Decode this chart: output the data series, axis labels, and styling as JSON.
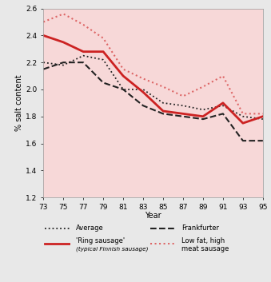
{
  "years": [
    73,
    75,
    77,
    79,
    81,
    83,
    85,
    87,
    89,
    91,
    93,
    95
  ],
  "average": [
    2.2,
    2.18,
    2.25,
    2.22,
    2.0,
    2.0,
    1.9,
    1.88,
    1.85,
    1.88,
    1.8,
    1.78
  ],
  "ring_sausage": [
    2.4,
    2.35,
    2.28,
    2.28,
    2.1,
    1.98,
    1.84,
    1.82,
    1.8,
    1.9,
    1.75,
    1.8
  ],
  "frankfurter": [
    2.15,
    2.2,
    2.2,
    2.05,
    2.0,
    1.88,
    1.82,
    1.8,
    1.78,
    1.82,
    1.62,
    1.62
  ],
  "low_fat": [
    2.5,
    2.56,
    2.48,
    2.38,
    2.15,
    2.08,
    2.02,
    1.95,
    2.02,
    2.1,
    1.82,
    1.82
  ],
  "ylim": [
    1.2,
    2.6
  ],
  "yticks": [
    1.2,
    1.4,
    1.6,
    1.8,
    2.0,
    2.2,
    2.4,
    2.6
  ],
  "xlabel": "Year",
  "ylabel": "% salt content",
  "color_red": "#cc2222",
  "color_dark": "#222222",
  "color_pink": "#dd6666",
  "bg_color": "#f7d8d8",
  "legend_average_label": "Average",
  "legend_ring_label": "'Ring sausage'",
  "legend_ring_sub": "(typical Finnish sausage)",
  "legend_frank_label": "Frankfurter",
  "legend_lowfat_label1": "Low fat, high",
  "legend_lowfat_label2": "meat sausage"
}
